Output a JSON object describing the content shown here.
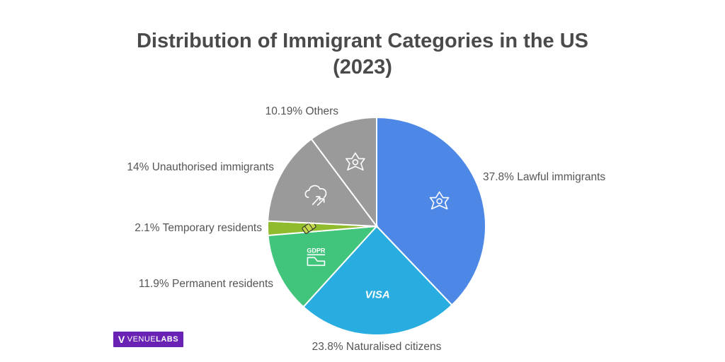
{
  "chart_data": {
    "type": "pie",
    "title_line1": "Distribution of Immigrant Categories in the US",
    "title_line2": "(2023)",
    "slices": [
      {
        "label": "37.8% Lawful immigrants",
        "value": 37.8,
        "color": "#4e88e6",
        "icon": "star-badge-icon"
      },
      {
        "label": "23.8% Naturalised citizens",
        "value": 23.8,
        "color": "#29ade0",
        "icon": "visa-icon",
        "icon_text": "VISA"
      },
      {
        "label": "11.9% Permanent residents",
        "value": 11.9,
        "color": "#41c47b",
        "icon": "gdpr-document-icon",
        "icon_text": "GDPR"
      },
      {
        "label": "2.1% Temporary residents",
        "value": 2.1,
        "color": "#8fbb2d",
        "icon": "passport-icon"
      },
      {
        "label": "14% Unauthorised immigrants",
        "value": 14.0,
        "color": "#9a9a9a",
        "icon": "cloud-arrows-icon"
      },
      {
        "label": "10.19% Others",
        "value": 10.19,
        "color": "#9a9a9a",
        "icon": "star-badge-icon"
      }
    ]
  },
  "brand": {
    "mark": "V",
    "part1": "VENUE",
    "part2": "LABS",
    "color": "#6a22b5"
  }
}
